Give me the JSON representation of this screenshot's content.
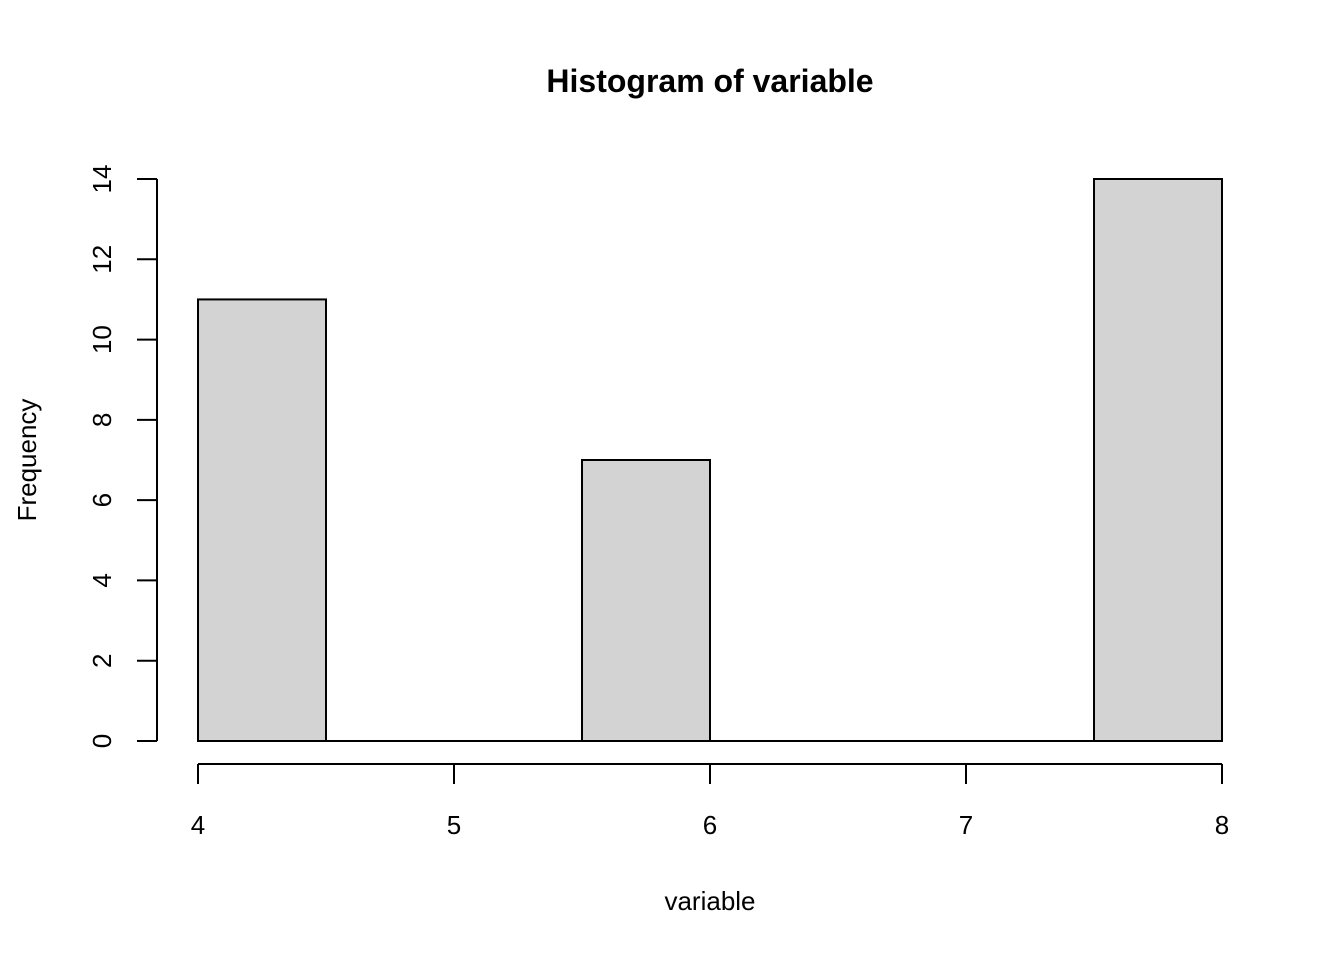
{
  "chart_data": {
    "type": "bar",
    "title": "Histogram of variable",
    "xlabel": "variable",
    "ylabel": "Frequency",
    "bins": [
      {
        "start": 4.0,
        "end": 4.5,
        "count": 11
      },
      {
        "start": 4.5,
        "end": 5.0,
        "count": 0
      },
      {
        "start": 5.0,
        "end": 5.5,
        "count": 0
      },
      {
        "start": 5.5,
        "end": 6.0,
        "count": 7
      },
      {
        "start": 6.0,
        "end": 6.5,
        "count": 0
      },
      {
        "start": 6.5,
        "end": 7.0,
        "count": 0
      },
      {
        "start": 7.0,
        "end": 7.5,
        "count": 0
      },
      {
        "start": 7.5,
        "end": 8.0,
        "count": 14
      }
    ],
    "xlim": [
      4,
      8
    ],
    "ylim": [
      0,
      14
    ],
    "xticks": [
      4,
      5,
      6,
      7,
      8
    ],
    "yticks": [
      0,
      2,
      4,
      6,
      8,
      10,
      12,
      14
    ],
    "colors": {
      "bar_fill": "#d3d3d3",
      "bar_stroke": "#000000"
    }
  }
}
